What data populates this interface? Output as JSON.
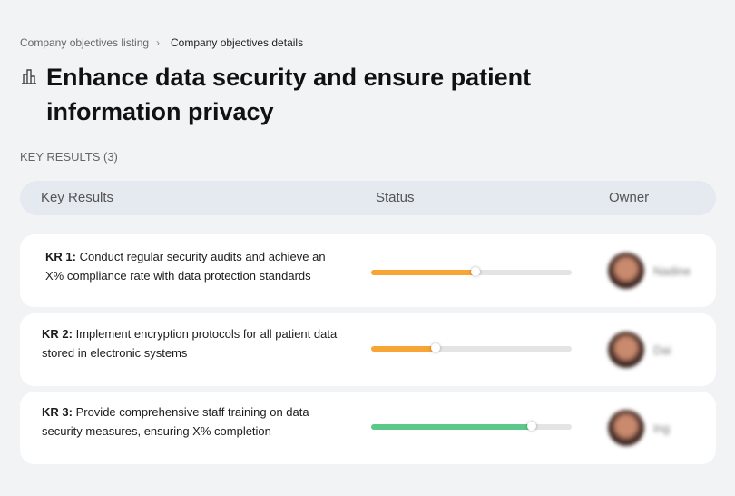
{
  "breadcrumb": [
    "Company objectives listing",
    "Company objectives details"
  ],
  "title": "Enhance data security and ensure patient information privacy",
  "section_label": "KEY RESULTS (3)",
  "table": {
    "columns": [
      "Key Results",
      "Status",
      "Owner"
    ],
    "rows": [
      {
        "label": "KR 1:",
        "text": "Conduct regular security audits and achieve an X% compliance rate with data protection standards",
        "progress": 52,
        "color": "#f7a535",
        "owner": "Nadine"
      },
      {
        "label": "KR 2:",
        "text": "Implement encryption protocols for all patient data stored in electronic systems",
        "progress": 32,
        "color": "#f7a535",
        "owner": "Dai"
      },
      {
        "label": "KR 3:",
        "text": "Provide comprehensive staff training on data security measures, ensuring X% completion",
        "progress": 80,
        "color": "#5cc98a",
        "owner": "Ing"
      }
    ]
  }
}
